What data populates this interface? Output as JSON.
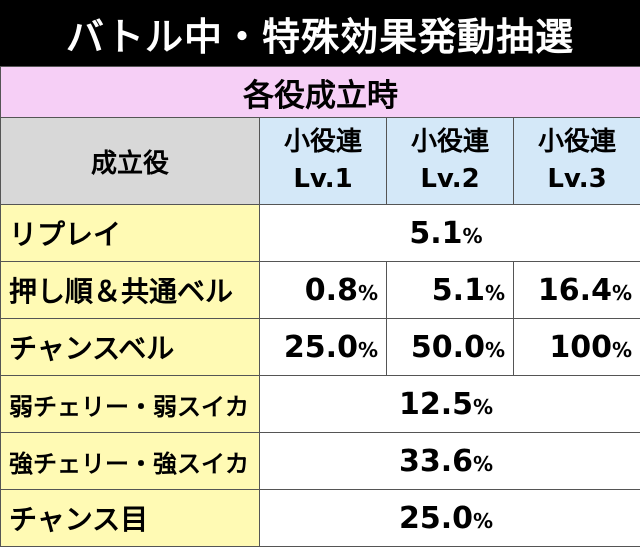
{
  "title": "バトル中・特殊効果発動抽選",
  "section": "各役成立時",
  "headers": {
    "role": "成立役",
    "lv1": [
      "小役連",
      "Lv.1"
    ],
    "lv2": [
      "小役連",
      "Lv.2"
    ],
    "lv3": [
      "小役連",
      "Lv.3"
    ]
  },
  "percent_sign": "%",
  "rows": [
    {
      "label": "リプレイ",
      "merged": "5.1"
    },
    {
      "label": "押し順＆共通ベル",
      "v1": "0.8",
      "v2": "5.1",
      "v3": "16.4"
    },
    {
      "label": "チャンスベル",
      "v1": "25.0",
      "v2": "50.0",
      "v3": "100"
    },
    {
      "label": "弱チェリー・弱スイカ",
      "merged": "12.5"
    },
    {
      "label": "強チェリー・強スイカ",
      "merged": "33.6"
    },
    {
      "label": "チャンス目",
      "merged": "25.0"
    }
  ],
  "colors": {
    "title_bg": "#000000",
    "section_bg": "#f6cff6",
    "header_bg": "#d8d8d8",
    "lv_header_bg": "#d4e8f8",
    "label_bg": "#fffab4"
  }
}
